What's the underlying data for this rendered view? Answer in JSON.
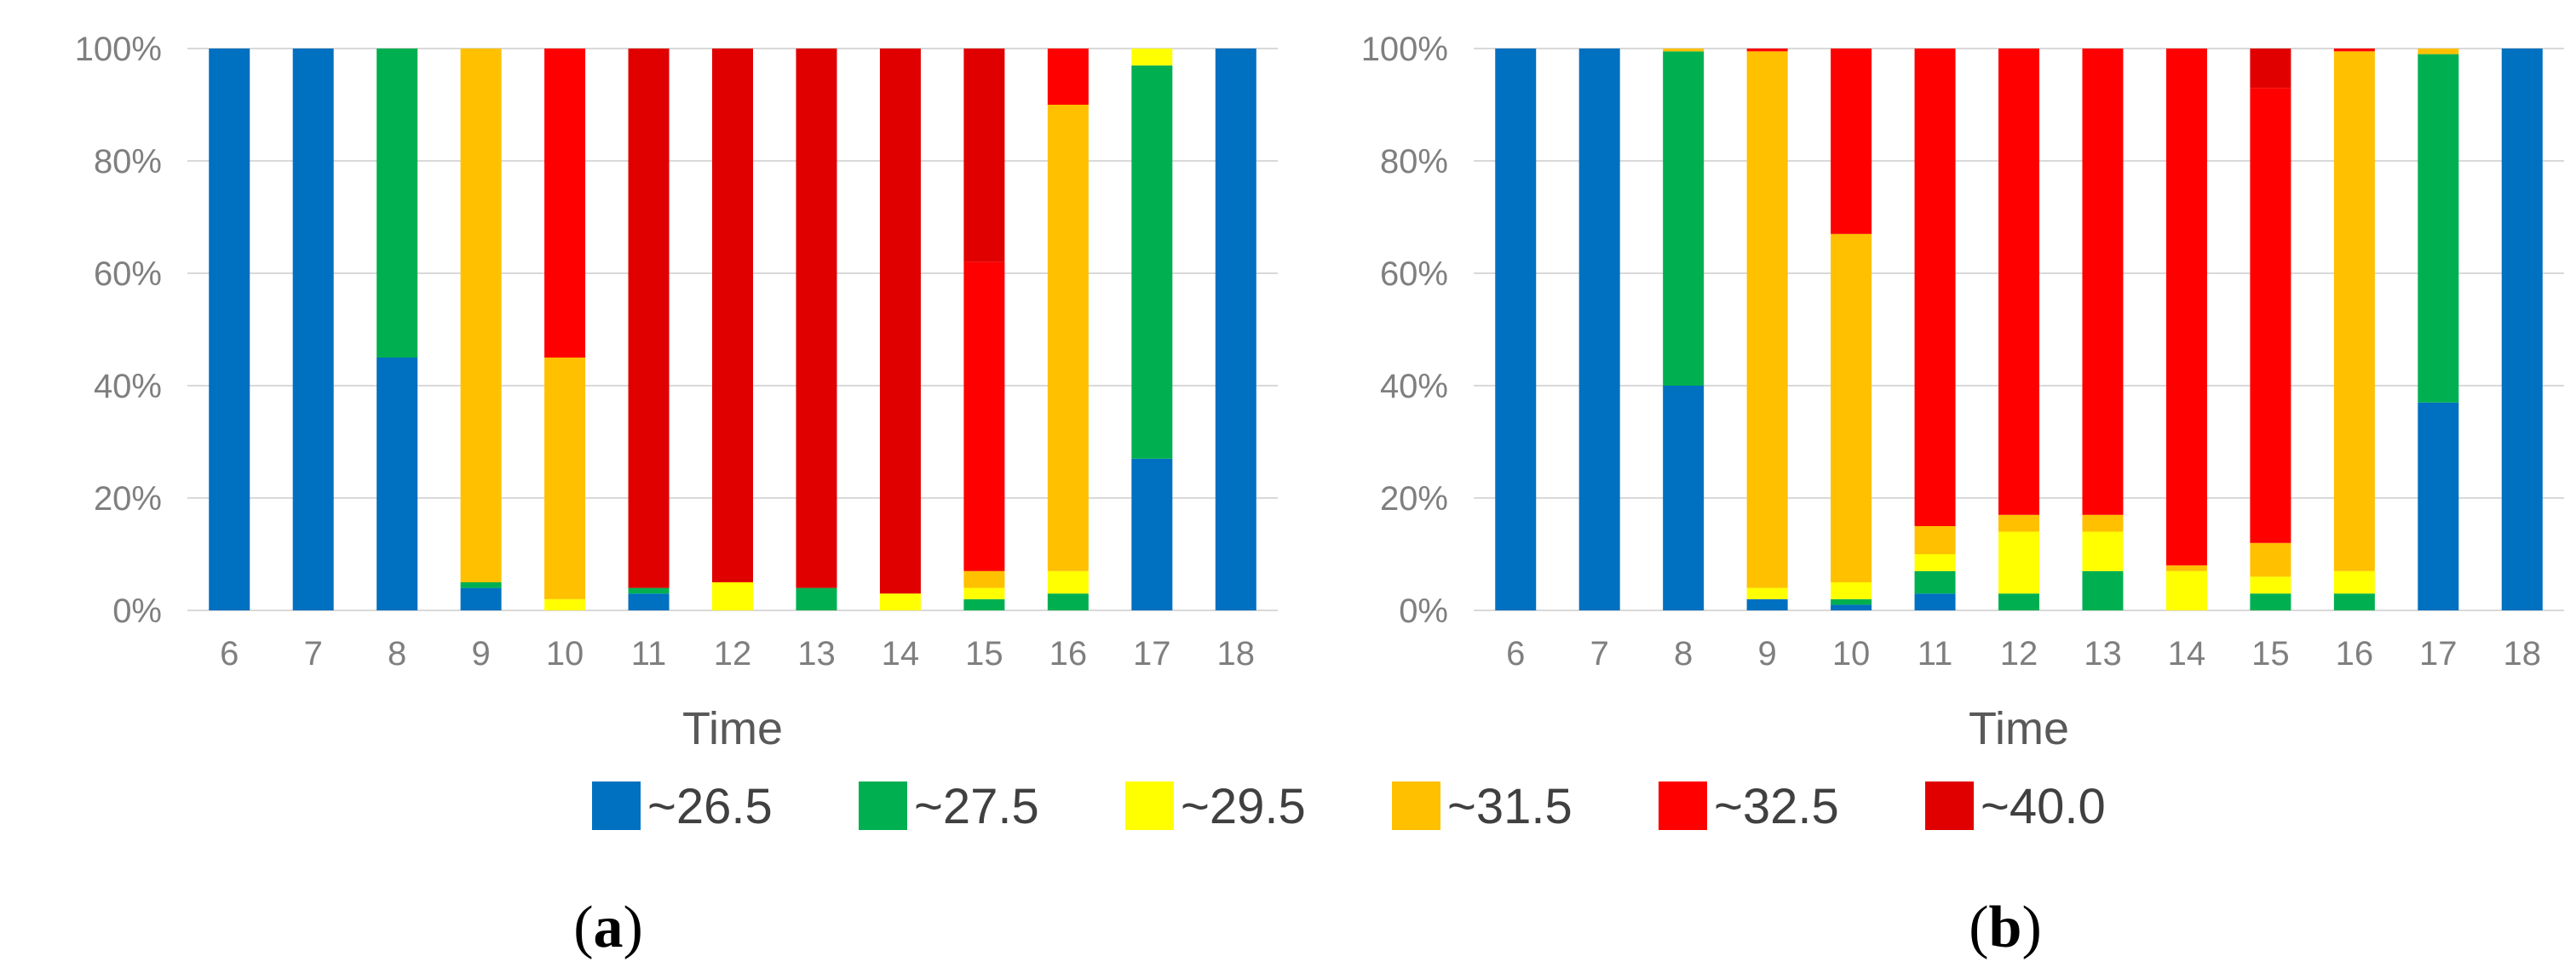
{
  "colors": {
    "~26.5": "#0070C0",
    "~27.5": "#00B050",
    "~29.5": "#FFFF00",
    "~31.5": "#FFC000",
    "~32.5": "#FF0000",
    "~40.0": "#E00000",
    "grid": "#d9d9d9",
    "tick_text": "#7f7f7f"
  },
  "legend": {
    "position": "bottom-center",
    "items": [
      {
        "label": "~26.5",
        "color": "#0070C0"
      },
      {
        "label": "~27.5",
        "color": "#00B050"
      },
      {
        "label": "~29.5",
        "color": "#FFFF00"
      },
      {
        "label": "~31.5",
        "color": "#FFC000"
      },
      {
        "label": "~32.5",
        "color": "#FF0000"
      },
      {
        "label": "~40.0",
        "color": "#E00000"
      }
    ]
  },
  "chart_data": [
    {
      "type": "bar",
      "stacked": "percent",
      "panel_label_left": "(",
      "panel_label_letter": "a",
      "panel_label_right": ")",
      "xlabel": "Time",
      "ylabel": "",
      "ylim": [
        0,
        100
      ],
      "yticks": [
        "0%",
        "20%",
        "40%",
        "60%",
        "80%",
        "100%"
      ],
      "grid": true,
      "categories": [
        "6",
        "7",
        "8",
        "9",
        "10",
        "11",
        "12",
        "13",
        "14",
        "15",
        "16",
        "17",
        "18"
      ],
      "series": [
        {
          "name": "~26.5",
          "values": [
            100,
            100,
            45,
            4,
            0,
            3,
            0,
            0,
            0,
            0,
            0,
            27,
            100
          ]
        },
        {
          "name": "~27.5",
          "values": [
            0,
            0,
            55,
            1,
            0,
            1,
            0,
            4,
            0,
            2,
            3,
            70,
            0
          ]
        },
        {
          "name": "~29.5",
          "values": [
            0,
            0,
            0,
            0,
            2,
            0,
            5,
            0,
            3,
            2,
            4,
            3,
            0
          ]
        },
        {
          "name": "~31.5",
          "values": [
            0,
            0,
            0,
            95,
            43,
            0,
            0,
            0,
            0,
            3,
            83,
            0,
            0
          ]
        },
        {
          "name": "~32.5",
          "values": [
            0,
            0,
            0,
            0,
            55,
            0,
            0,
            0,
            0,
            55,
            10,
            0,
            0
          ]
        },
        {
          "name": "~40.0",
          "values": [
            0,
            0,
            0,
            0,
            0,
            96,
            95,
            96,
            97,
            38,
            0,
            0,
            0
          ]
        }
      ]
    },
    {
      "type": "bar",
      "stacked": "percent",
      "panel_label_left": "(",
      "panel_label_letter": "b",
      "panel_label_right": ")",
      "xlabel": "Time",
      "ylabel": "",
      "ylim": [
        0,
        100
      ],
      "yticks": [
        "0%",
        "20%",
        "40%",
        "60%",
        "80%",
        "100%"
      ],
      "grid": true,
      "categories": [
        "6",
        "7",
        "8",
        "9",
        "10",
        "11",
        "12",
        "13",
        "14",
        "15",
        "16",
        "17",
        "18"
      ],
      "series": [
        {
          "name": "~26.5",
          "values": [
            100,
            100,
            40,
            2,
            1,
            3,
            0,
            0,
            0,
            0,
            0,
            37,
            100
          ]
        },
        {
          "name": "~27.5",
          "values": [
            0,
            0,
            59.5,
            0,
            1,
            4,
            3,
            7,
            0,
            3,
            3,
            62,
            0
          ]
        },
        {
          "name": "~29.5",
          "values": [
            0,
            0,
            0,
            2,
            3,
            3,
            11,
            7,
            7,
            3,
            4,
            0,
            0
          ]
        },
        {
          "name": "~31.5",
          "values": [
            0,
            0,
            0.5,
            95.5,
            62,
            5,
            3,
            3,
            1,
            6,
            92.5,
            1,
            0
          ]
        },
        {
          "name": "~32.5",
          "values": [
            0,
            0,
            0,
            0.5,
            33,
            85,
            83,
            83,
            92,
            81,
            0.5,
            0,
            0
          ]
        },
        {
          "name": "~40.0",
          "values": [
            0,
            0,
            0,
            0,
            0,
            0,
            0,
            0,
            0,
            7,
            0,
            0,
            0
          ]
        }
      ]
    }
  ]
}
